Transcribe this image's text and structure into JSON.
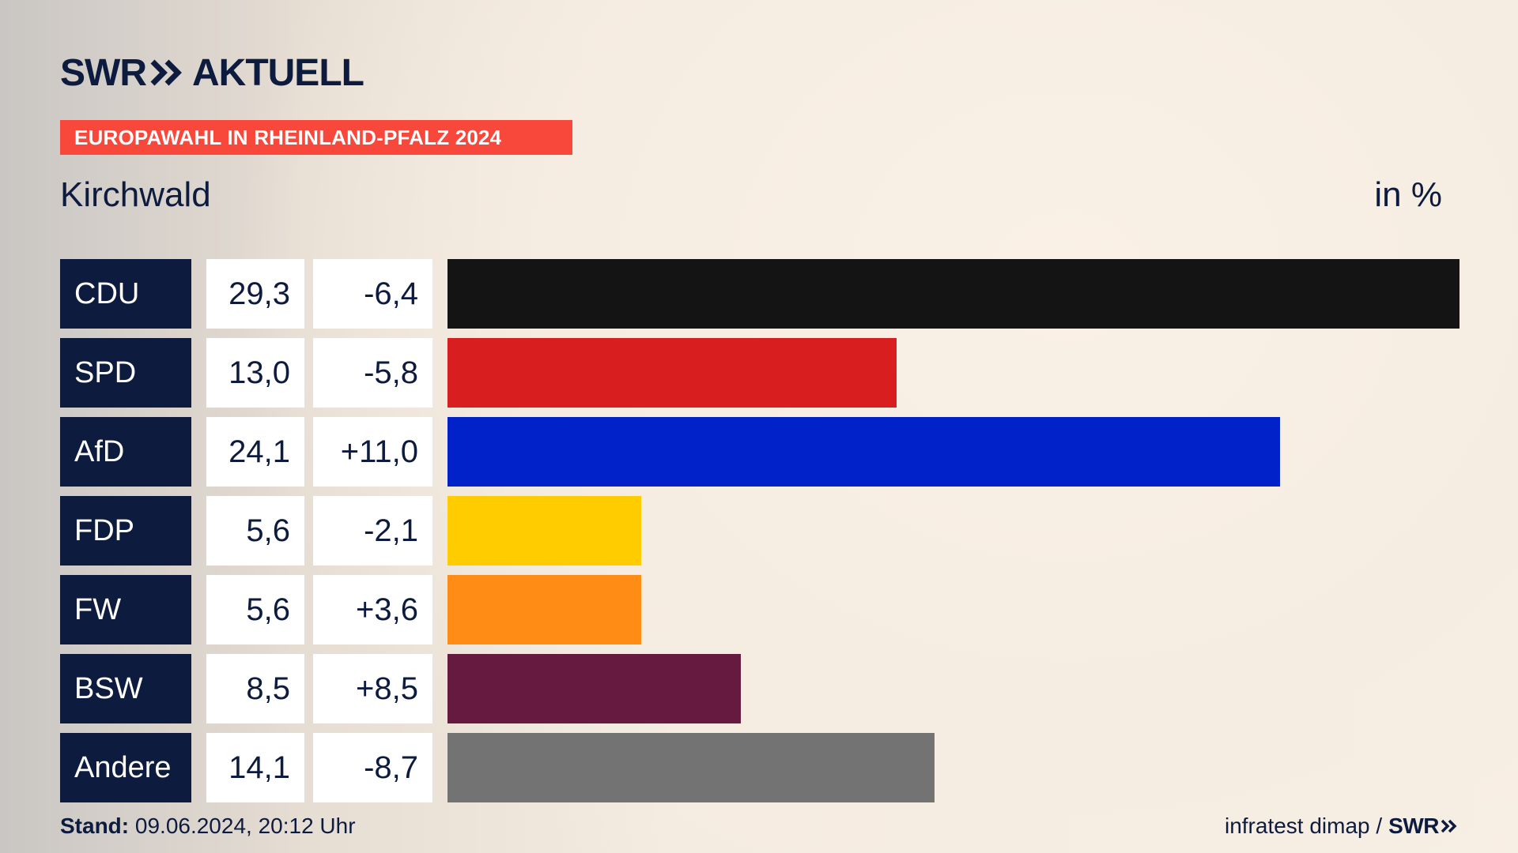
{
  "header": {
    "brand_left": "SWR",
    "brand_right": "AKTUELL",
    "banner": "EUROPAWAHL IN RHEINLAND-PFALZ 2024",
    "place": "Kirchwald",
    "unit": "in %"
  },
  "footer": {
    "stand_label": "Stand:",
    "stand_value": "09.06.2024, 20:12 Uhr",
    "source": "infratest dimap /",
    "source_brand": "SWR"
  },
  "colors": {
    "navy": "#0d1b3e",
    "banner": "#f8483c"
  },
  "chart_data": {
    "type": "bar",
    "orientation": "horizontal",
    "categories": [
      "CDU",
      "SPD",
      "AfD",
      "FDP",
      "FW",
      "BSW",
      "Andere"
    ],
    "values": [
      29.3,
      13.0,
      24.1,
      5.6,
      5.6,
      8.5,
      14.1
    ],
    "value_labels": [
      "29,3",
      "13,0",
      "24,1",
      "5,6",
      "5,6",
      "8,5",
      "14,1"
    ],
    "changes": [
      -6.4,
      -5.8,
      11.0,
      -2.1,
      3.6,
      8.5,
      -8.7
    ],
    "change_labels": [
      "-6,4",
      "-5,8",
      "+11,0",
      "-2,1",
      "+3,6",
      "+8,5",
      "-8,7"
    ],
    "bar_colors": [
      "#141414",
      "#d81e1e",
      "#0022c8",
      "#ffcc00",
      "#ff8c14",
      "#661a40",
      "#737373"
    ],
    "xlim": [
      0,
      29.3
    ],
    "title": "Kirchwald",
    "unit": "in %"
  }
}
